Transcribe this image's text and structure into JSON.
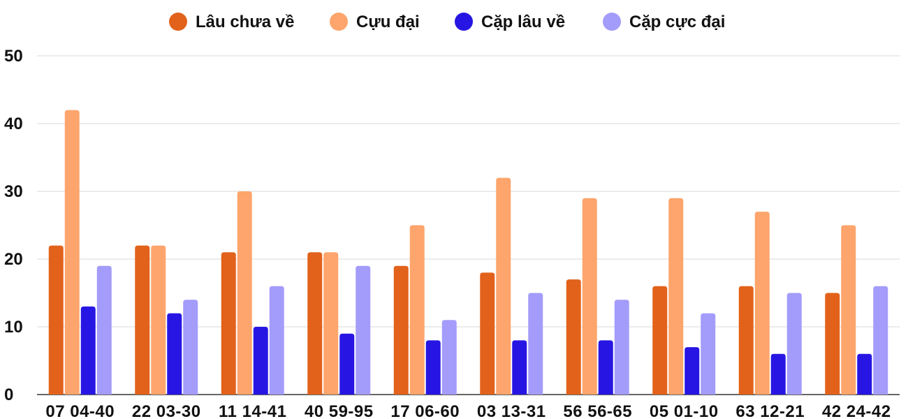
{
  "chart_data": {
    "type": "bar",
    "categories": [
      "07 04-40",
      "22 03-30",
      "11 14-41",
      "40 59-95",
      "17 06-60",
      "03 13-31",
      "56 56-65",
      "05 01-10",
      "63 12-21",
      "42 24-42"
    ],
    "series": [
      {
        "name": "Lâu chưa về",
        "color": "#e2621b",
        "values": [
          22,
          22,
          21,
          21,
          19,
          18,
          17,
          16,
          16,
          15
        ]
      },
      {
        "name": "Cựu đại",
        "color": "#fda56c",
        "values": [
          42,
          22,
          30,
          21,
          25,
          32,
          29,
          29,
          27,
          25
        ]
      },
      {
        "name": "Cặp lâu về",
        "color": "#2716e3",
        "values": [
          13,
          12,
          10,
          9,
          8,
          8,
          8,
          7,
          6,
          6
        ]
      },
      {
        "name": "Cặp cực đại",
        "color": "#a39cfa",
        "values": [
          19,
          14,
          16,
          19,
          11,
          15,
          14,
          12,
          15,
          16
        ]
      }
    ],
    "ylim": [
      0,
      50
    ],
    "yticks": [
      0,
      10,
      20,
      30,
      40,
      50
    ],
    "grid": true,
    "legend": "top-center"
  }
}
